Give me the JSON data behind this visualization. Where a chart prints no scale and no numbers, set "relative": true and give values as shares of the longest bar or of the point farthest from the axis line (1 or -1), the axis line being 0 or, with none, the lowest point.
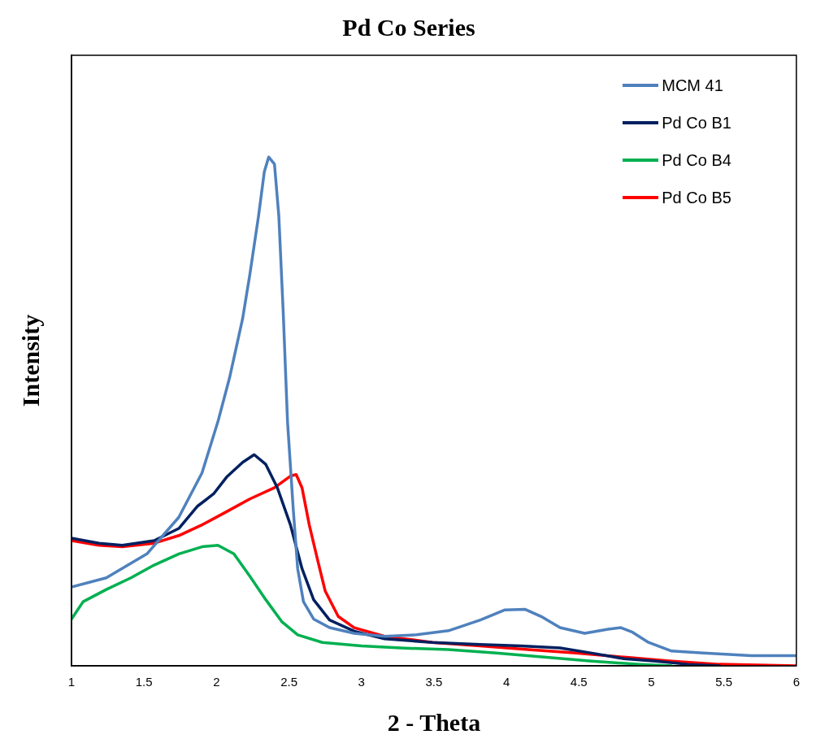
{
  "chart_data": {
    "type": "line",
    "title": "Pd Co Series",
    "xlabel": "2 - Theta",
    "ylabel": "Intensity",
    "relative": true,
    "xlim": [
      1,
      6
    ],
    "xticks": [
      1,
      1.5,
      2,
      2.5,
      3,
      3.5,
      4,
      4.5,
      5,
      5.5,
      6
    ],
    "grid": false,
    "legend": "top right",
    "marker": "none",
    "line_style": "solid",
    "series": [
      {
        "name": "MCM 41",
        "color": "#4f81bd",
        "x": [
          1,
          1.24,
          1.52,
          1.74,
          1.9,
          2.01,
          2.09,
          2.18,
          2.23,
          2.29,
          2.33,
          2.36,
          2.4,
          2.43,
          2.46,
          2.49,
          2.53,
          2.56,
          2.6,
          2.67,
          2.78,
          2.95,
          3.16,
          3.38,
          3.6,
          3.82,
          3.99,
          4.13,
          4.24,
          4.37,
          4.54,
          4.7,
          4.79,
          4.87,
          4.98,
          5.14,
          5.36,
          5.69,
          6
        ],
        "values": [
          0.155,
          0.173,
          0.22,
          0.292,
          0.379,
          0.48,
          0.566,
          0.682,
          0.769,
          0.884,
          0.971,
          1,
          0.986,
          0.884,
          0.697,
          0.48,
          0.306,
          0.191,
          0.126,
          0.092,
          0.075,
          0.064,
          0.058,
          0.061,
          0.069,
          0.09,
          0.11,
          0.111,
          0.097,
          0.075,
          0.064,
          0.072,
          0.075,
          0.066,
          0.046,
          0.029,
          0.025,
          0.02,
          0.02
        ]
      },
      {
        "name": "Pd Co B1",
        "color": "#002060",
        "x": [
          1,
          1.19,
          1.35,
          1.57,
          1.74,
          1.87,
          1.98,
          2.07,
          2.18,
          2.26,
          2.34,
          2.42,
          2.51,
          2.59,
          2.67,
          2.78,
          2.95,
          3.16,
          3.49,
          3.82,
          4.1,
          4.37,
          4.59,
          4.81,
          5.03,
          5.25,
          5.47
        ],
        "values": [
          0.251,
          0.241,
          0.237,
          0.246,
          0.27,
          0.314,
          0.338,
          0.371,
          0.4,
          0.415,
          0.396,
          0.35,
          0.277,
          0.191,
          0.13,
          0.09,
          0.068,
          0.053,
          0.046,
          0.042,
          0.039,
          0.035,
          0.025,
          0.014,
          0.009,
          0.003,
          0
        ]
      },
      {
        "name": "Pd Co B4",
        "color": "#00b050",
        "x": [
          1,
          1.08,
          1.24,
          1.41,
          1.57,
          1.74,
          1.9,
          2.01,
          2.12,
          2.23,
          2.34,
          2.45,
          2.56,
          2.73,
          3,
          3.27,
          3.6,
          3.93,
          4.26,
          4.59,
          4.92,
          5.14
        ],
        "values": [
          0.092,
          0.126,
          0.15,
          0.173,
          0.198,
          0.22,
          0.234,
          0.237,
          0.22,
          0.176,
          0.13,
          0.087,
          0.061,
          0.046,
          0.039,
          0.035,
          0.032,
          0.025,
          0.017,
          0.009,
          0.003,
          0
        ]
      },
      {
        "name": "Pd Co B5",
        "color": "#ff0000",
        "x": [
          1,
          1.19,
          1.35,
          1.57,
          1.74,
          1.9,
          2.07,
          2.23,
          2.4,
          2.51,
          2.55,
          2.59,
          2.64,
          2.7,
          2.75,
          2.84,
          2.95,
          3.16,
          3.49,
          3.82,
          4.15,
          4.48,
          4.81,
          5.14,
          5.47,
          6
        ],
        "values": [
          0.246,
          0.237,
          0.234,
          0.241,
          0.256,
          0.277,
          0.303,
          0.328,
          0.35,
          0.373,
          0.376,
          0.35,
          0.277,
          0.205,
          0.147,
          0.097,
          0.075,
          0.058,
          0.046,
          0.039,
          0.032,
          0.025,
          0.017,
          0.009,
          0.003,
          0
        ]
      }
    ]
  }
}
